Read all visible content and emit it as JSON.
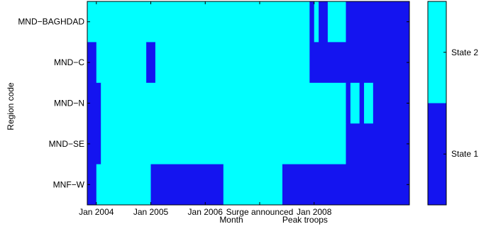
{
  "chart_data": {
    "type": "heatmap",
    "title": "",
    "xlabel": "Month",
    "ylabel": "Region code",
    "x_range_months": [
      "Jan 2003 (+10)",
      "2009"
    ],
    "x_start": "2003-11",
    "x_end": "2009-09",
    "x_ticks": [
      {
        "date": "2004-01",
        "label": "Jan 2004"
      },
      {
        "date": "2005-01",
        "label": "Jan 2005"
      },
      {
        "date": "2006-01",
        "label": "Jan 2006"
      },
      {
        "date": "2007-01",
        "label": "Surge announced"
      },
      {
        "date": "2008-01",
        "label": "Jan 2008"
      }
    ],
    "extra_labels": [
      {
        "date": "2007-11",
        "label": "Peak troops"
      }
    ],
    "rows": [
      "MND−BAGHDAD",
      "MND−C",
      "MND−N",
      "MND−SE",
      "MNF−W"
    ],
    "states": [
      {
        "name": "State 1",
        "value": 1,
        "color": "#1414f0"
      },
      {
        "name": "State 2",
        "value": 2,
        "color": "#00ffff"
      }
    ],
    "colorbar_labels": [
      "State 2",
      "State 1"
    ],
    "grid": false,
    "colorbar_position": "right",
    "segments": {
      "MND−BAGHDAD": [
        {
          "from": "2003-11",
          "to": "2007-11",
          "state": 2
        },
        {
          "from": "2007-12",
          "to": "2007-12",
          "state": 1
        },
        {
          "from": "2008-01",
          "to": "2008-01",
          "state": 2
        },
        {
          "from": "2008-02",
          "to": "2008-03",
          "state": 1
        },
        {
          "from": "2008-04",
          "to": "2008-07",
          "state": 2
        },
        {
          "from": "2008-08",
          "to": "2009-09",
          "state": 1
        }
      ],
      "MND−C": [
        {
          "from": "2003-11",
          "to": "2003-12",
          "state": 1
        },
        {
          "from": "2004-01",
          "to": "2004-01",
          "state": 2
        },
        {
          "from": "2004-02",
          "to": "2004-11",
          "state": 2
        },
        {
          "from": "2004-12",
          "to": "2005-01",
          "state": 1
        },
        {
          "from": "2005-02",
          "to": "2007-11",
          "state": 2
        },
        {
          "from": "2007-12",
          "to": "2009-09",
          "state": 1
        }
      ],
      "MND−N": [
        {
          "from": "2003-11",
          "to": "2004-01",
          "state": 1
        },
        {
          "from": "2004-02",
          "to": "2008-07",
          "state": 2
        },
        {
          "from": "2008-08",
          "to": "2008-08",
          "state": 1
        },
        {
          "from": "2008-09",
          "to": "2008-10",
          "state": 2
        },
        {
          "from": "2008-11",
          "to": "2008-11",
          "state": 1
        },
        {
          "from": "2008-12",
          "to": "2009-01",
          "state": 2
        },
        {
          "from": "2009-02",
          "to": "2009-09",
          "state": 1
        }
      ],
      "MND−SE": [
        {
          "from": "2003-11",
          "to": "2004-01",
          "state": 1
        },
        {
          "from": "2004-02",
          "to": "2008-07",
          "state": 2
        },
        {
          "from": "2008-08",
          "to": "2009-09",
          "state": 1
        }
      ],
      "MNF−W": [
        {
          "from": "2003-11",
          "to": "2003-12",
          "state": 1
        },
        {
          "from": "2004-01",
          "to": "2004-12",
          "state": 2
        },
        {
          "from": "2005-01",
          "to": "2006-04",
          "state": 1
        },
        {
          "from": "2006-05",
          "to": "2007-05",
          "state": 2
        },
        {
          "from": "2007-06",
          "to": "2009-09",
          "state": 1
        }
      ]
    }
  }
}
